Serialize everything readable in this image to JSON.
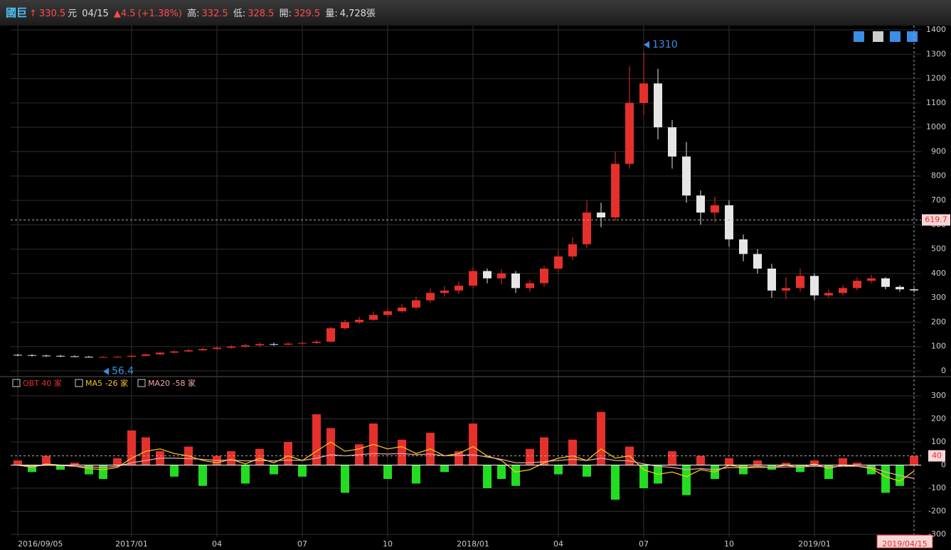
{
  "header": {
    "name": "國巨",
    "price": "330.5",
    "unit": "元",
    "date": "04/15",
    "change": "▲4.5",
    "pct": "(+1.38%)",
    "high_label": "高:",
    "high": "332.5",
    "low_label": "低:",
    "low": "328.5",
    "open_label": "開:",
    "open": "329.5",
    "volume_label": "量:",
    "volume": "4,728張"
  },
  "chart_data": [
    {
      "type": "candlestick",
      "categories": [
        "2016/09/05",
        null,
        null,
        null,
        null,
        null,
        null,
        null,
        "2017/01",
        null,
        null,
        null,
        null,
        null,
        "04",
        null,
        null,
        null,
        null,
        null,
        "07",
        null,
        null,
        null,
        null,
        null,
        "10",
        null,
        null,
        null,
        null,
        null,
        "2018/01",
        null,
        null,
        null,
        null,
        null,
        "04",
        null,
        null,
        null,
        null,
        null,
        "07",
        null,
        null,
        null,
        null,
        null,
        "10",
        null,
        null,
        null,
        null,
        null,
        "2019/01",
        null,
        null,
        null,
        null,
        null,
        null,
        "2019/04/15"
      ],
      "open": [
        66,
        65,
        63,
        62,
        60,
        58,
        57,
        57,
        58,
        62,
        68,
        75,
        80,
        85,
        90,
        95,
        100,
        105,
        110,
        108,
        112,
        115,
        120,
        175,
        200,
        210,
        230,
        245,
        260,
        290,
        320,
        330,
        350,
        410,
        380,
        400,
        340,
        360,
        420,
        470,
        520,
        650,
        630,
        850,
        1100,
        1180,
        1000,
        880,
        720,
        650,
        680,
        540,
        480,
        420,
        330,
        340,
        390,
        310,
        320,
        340,
        370,
        380,
        345,
        335
      ],
      "high": [
        70,
        69,
        67,
        66,
        64,
        62,
        61,
        62,
        66,
        72,
        80,
        85,
        90,
        95,
        101,
        106,
        111,
        117,
        116,
        118,
        122,
        128,
        182,
        210,
        222,
        244,
        258,
        275,
        305,
        338,
        348,
        368,
        425,
        420,
        418,
        410,
        375,
        432,
        495,
        548,
        700,
        690,
        900,
        1250,
        1310,
        1240,
        1030,
        940,
        740,
        715,
        700,
        560,
        500,
        440,
        385,
        420,
        400,
        335,
        352,
        385,
        395,
        385,
        352,
        340
      ],
      "low": [
        61,
        59,
        58,
        57,
        57,
        57,
        56.4,
        56.8,
        57,
        60,
        66,
        72,
        77,
        82,
        86,
        91,
        96,
        100,
        103,
        104,
        108,
        110,
        118,
        170,
        192,
        205,
        222,
        238,
        252,
        280,
        305,
        315,
        340,
        360,
        355,
        320,
        325,
        345,
        405,
        455,
        505,
        590,
        615,
        830,
        1050,
        950,
        830,
        690,
        600,
        610,
        510,
        450,
        400,
        300,
        295,
        325,
        290,
        300,
        310,
        330,
        360,
        335,
        325,
        322
      ],
      "close": [
        65,
        63,
        62,
        60,
        58,
        57,
        57,
        58,
        62,
        68,
        75,
        80,
        85,
        90,
        95,
        100,
        105,
        110,
        108,
        112,
        115,
        120,
        175,
        200,
        210,
        230,
        245,
        260,
        290,
        320,
        330,
        350,
        410,
        380,
        400,
        340,
        360,
        420,
        470,
        520,
        650,
        630,
        850,
        1100,
        1180,
        1000,
        880,
        720,
        650,
        680,
        540,
        480,
        420,
        330,
        340,
        390,
        310,
        320,
        340,
        370,
        380,
        345,
        335,
        330.5
      ],
      "up_color": "#e5302b",
      "down_color": "#e6e6e6",
      "ylim": [
        0,
        1400
      ],
      "yticks": [
        0,
        100,
        200,
        300,
        400,
        500,
        600,
        700,
        800,
        900,
        1000,
        1100,
        1200,
        1300,
        1400
      ],
      "ref_line": 619.7,
      "grid": true
    },
    {
      "type": "bar-line",
      "series": [
        {
          "name": "OBT 40 家",
          "kind": "bar",
          "color": "#e5302b",
          "neg_color": "#22dd22",
          "values": [
            20,
            -30,
            40,
            -20,
            10,
            -40,
            -60,
            30,
            150,
            120,
            60,
            -50,
            80,
            -90,
            40,
            60,
            -80,
            70,
            -40,
            100,
            -50,
            220,
            160,
            -120,
            90,
            180,
            -60,
            110,
            -80,
            140,
            -30,
            60,
            180,
            -100,
            -60,
            -90,
            70,
            120,
            -40,
            110,
            -50,
            230,
            -150,
            80,
            -100,
            -80,
            60,
            -130,
            40,
            -60,
            30,
            -40,
            20,
            -20,
            10,
            -30,
            20,
            -60,
            30,
            10,
            -40,
            -120,
            -90,
            40
          ]
        },
        {
          "name": "MA5 -26 家",
          "kind": "line",
          "color": "#f5c518",
          "values": [
            0,
            -10,
            5,
            0,
            -5,
            -15,
            -20,
            -10,
            30,
            60,
            70,
            50,
            40,
            20,
            10,
            25,
            5,
            30,
            10,
            40,
            20,
            60,
            100,
            60,
            70,
            90,
            70,
            80,
            50,
            70,
            40,
            50,
            80,
            40,
            20,
            -30,
            -20,
            10,
            30,
            40,
            20,
            70,
            30,
            40,
            -20,
            -40,
            -30,
            -50,
            -20,
            -30,
            0,
            -10,
            -5,
            -10,
            0,
            -10,
            5,
            -15,
            0,
            -5,
            -15,
            -50,
            -70,
            -26
          ]
        },
        {
          "name": "MA20 -58 家",
          "kind": "line",
          "color": "#f4a6a6",
          "values": [
            0,
            -5,
            0,
            -2,
            -5,
            -8,
            -10,
            -5,
            10,
            20,
            30,
            30,
            28,
            25,
            20,
            22,
            18,
            20,
            18,
            22,
            20,
            30,
            45,
            40,
            45,
            50,
            48,
            50,
            45,
            48,
            40,
            42,
            45,
            35,
            25,
            10,
            10,
            15,
            20,
            25,
            20,
            30,
            20,
            18,
            5,
            -5,
            -10,
            -20,
            -15,
            -20,
            -10,
            -12,
            -10,
            -10,
            -8,
            -8,
            -5,
            -8,
            -5,
            -5,
            -10,
            -30,
            -45,
            -58
          ]
        }
      ],
      "ylim": [
        -300,
        300
      ],
      "yticks": [
        -300,
        -200,
        -100,
        0,
        100,
        200,
        300
      ],
      "ref_line": 40
    }
  ]
}
